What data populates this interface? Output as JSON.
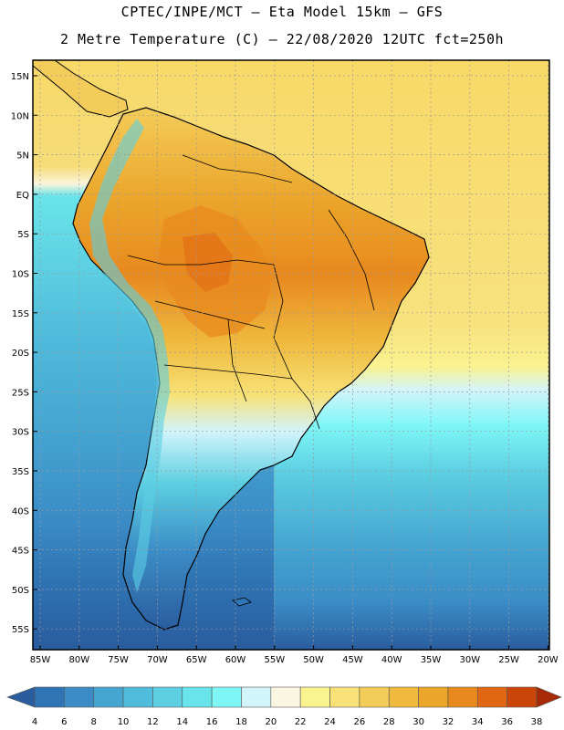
{
  "header": {
    "line1": "CPTEC/INPE/MCT –  Eta Model 15km – GFS",
    "line2": "2 Metre Temperature (C) – 22/08/2020 12UTC fct=250h"
  },
  "lat_labels": [
    "15N",
    "10N",
    "5N",
    "EQ",
    "5S",
    "10S",
    "15S",
    "20S",
    "25S",
    "30S",
    "35S",
    "40S",
    "45S",
    "50S",
    "55S"
  ],
  "lon_labels": [
    "85W",
    "80W",
    "75W",
    "70W",
    "65W",
    "60W",
    "55W",
    "50W",
    "45W",
    "40W",
    "35W",
    "30W",
    "25W",
    "20W"
  ],
  "colorbar": {
    "labels": [
      "4",
      "6",
      "8",
      "10",
      "12",
      "14",
      "16",
      "18",
      "20",
      "22",
      "24",
      "26",
      "28",
      "30",
      "32",
      "34",
      "36",
      "38"
    ],
    "colors": [
      "#2a5c9e",
      "#2f74b4",
      "#3b8cc6",
      "#45a6d2",
      "#50bcdc",
      "#5ccfe2",
      "#68e4ea",
      "#7ef6f6",
      "#d2f4fb",
      "#fbf6e1",
      "#fbf290",
      "#f8e176",
      "#f4cc59",
      "#efba3e",
      "#eba52a",
      "#e8891e",
      "#e06812",
      "#cc4508",
      "#a52a05"
    ]
  },
  "colors": {
    "ocean_north": "#f8d968",
    "ocean_south": "#2a5c9e",
    "land_hot": "#e8891e"
  }
}
